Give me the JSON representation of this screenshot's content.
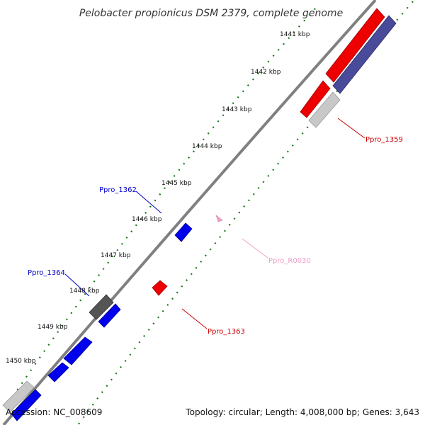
{
  "map": {
    "title": "Pelobacter propionicus DSM 2379, complete genome",
    "accession": "Accession: NC_008609",
    "summary": "Topology: circular; Length: 4,008,000 bp; Genes: 3,643"
  },
  "ticks": [
    {
      "label": "1441 kbp"
    },
    {
      "label": "1442 kbp"
    },
    {
      "label": "1443 kbp"
    },
    {
      "label": "1444 kbp"
    },
    {
      "label": "1445 kbp"
    },
    {
      "label": "1446 kbp"
    },
    {
      "label": "1447 kbp"
    },
    {
      "label": "1448 kbp"
    },
    {
      "label": "1449 kbp"
    },
    {
      "label": "1450 kbp"
    }
  ],
  "gene_labels": [
    {
      "text": "Ppro_1359",
      "color": "#cc0000"
    },
    {
      "text": "Ppro_1362",
      "color": "#0000cc"
    },
    {
      "text": "Ppro_R0030",
      "color": "#f0a0c8"
    },
    {
      "text": "Ppro_1364",
      "color": "#0000cc"
    },
    {
      "text": "Ppro_1363",
      "color": "#cc0000"
    }
  ],
  "colors": {
    "backbone": "#808080",
    "tick_track": "#1a7a1a",
    "forward_cds": "#0000ee",
    "reverse_cds": "#ee0000",
    "other_feature": "#555555",
    "cog_track": "#4a4a9a",
    "cog_light": "#c8c8c8",
    "rna": "#f0a0c8"
  }
}
